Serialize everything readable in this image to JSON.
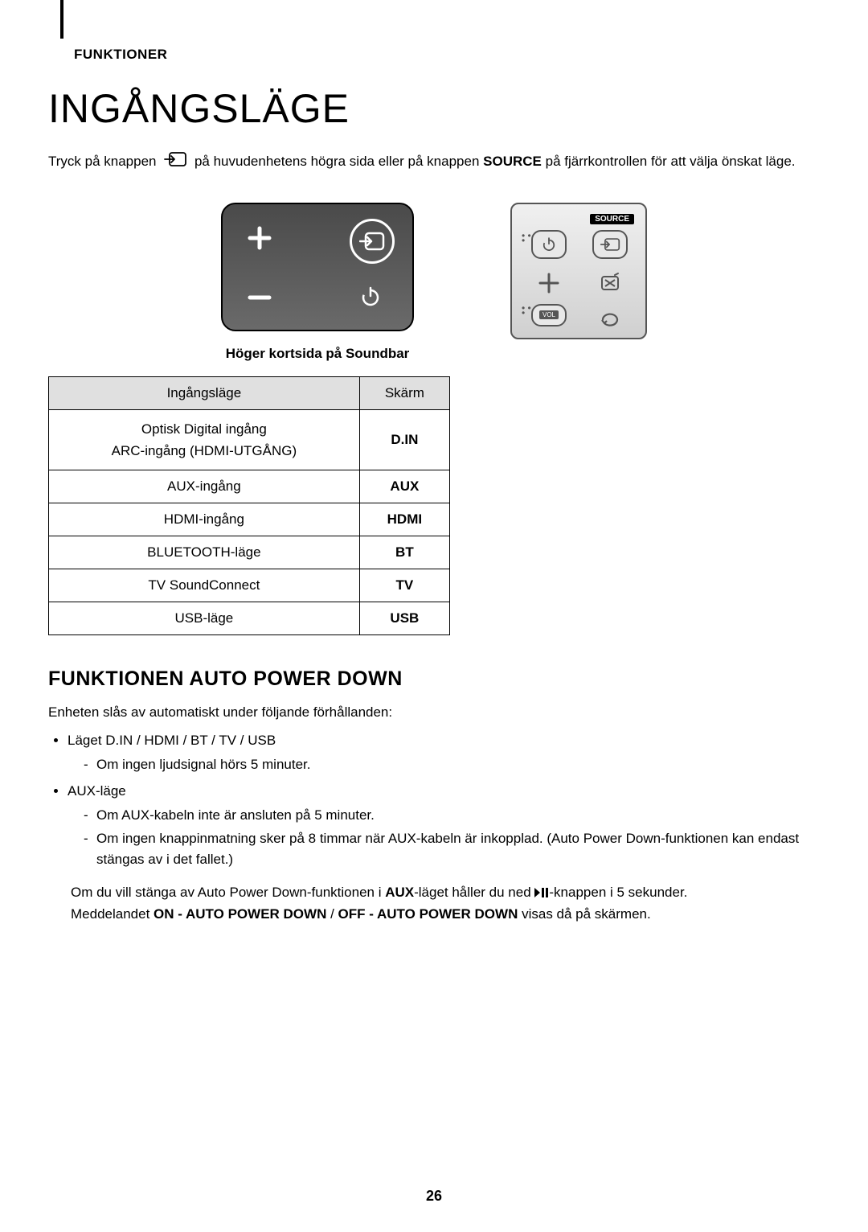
{
  "section_label": "FUNKTIONER",
  "title": "INGÅNGSLÄGE",
  "intro": {
    "part1": "Tryck på knappen ",
    "part2": " på huvudenhetens högra sida eller på knappen ",
    "strong": "SOURCE",
    "part3": " på fjärrkontrollen för att välja önskat läge."
  },
  "caption": "Höger kortsida på Soundbar",
  "remote": {
    "source_label": "SOURCE",
    "vol_label": "VOL"
  },
  "table": {
    "headers": [
      "Ingångsläge",
      "Skärm"
    ],
    "rows": [
      {
        "c1": "Optisk Digital ingång\nARC-ingång (HDMI-UTGÅNG)",
        "c2": "D.IN",
        "multi": true
      },
      {
        "c1": "AUX-ingång",
        "c2": "AUX"
      },
      {
        "c1": "HDMI-ingång",
        "c2": "HDMI"
      },
      {
        "c1": "BLUETOOTH-läge",
        "c2": "BT"
      },
      {
        "c1": "TV SoundConnect",
        "c2": "TV"
      },
      {
        "c1": "USB-läge",
        "c2": "USB"
      }
    ]
  },
  "sub_heading": "FUNKTIONEN AUTO POWER DOWN",
  "sub_intro": "Enheten slås av automatiskt under följande förhållanden:",
  "bullets": [
    {
      "text": "Läget D.IN / HDMI / BT / TV / USB",
      "subs": [
        "Om ingen ljudsignal hörs 5 minuter."
      ]
    },
    {
      "text": "AUX-läge",
      "subs": [
        "Om AUX-kabeln inte är ansluten på 5 minuter.",
        "Om ingen knappinmatning sker på 8 timmar när AUX-kabeln är inkopplad. (Auto Power Down-funktionen kan endast stängas av i det fallet.)"
      ]
    }
  ],
  "closing": {
    "p1a": "Om du vill stänga av Auto Power Down-funktionen i ",
    "p1b": "AUX",
    "p1c": "-läget håller du ned ",
    "p1d": "-knappen i 5 sekunder.",
    "p2a": "Meddelandet ",
    "p2b": "ON - AUTO POWER DOWN",
    "p2c": " / ",
    "p2d": "OFF - AUTO POWER DOWN",
    "p2e": " visas då på skärmen."
  },
  "page_num": "26",
  "colors": {
    "panel_dark": "#4a4a4a",
    "panel_light": "#6a6a6a",
    "remote_border": "#555555",
    "header_bg": "#e0e0e0"
  }
}
